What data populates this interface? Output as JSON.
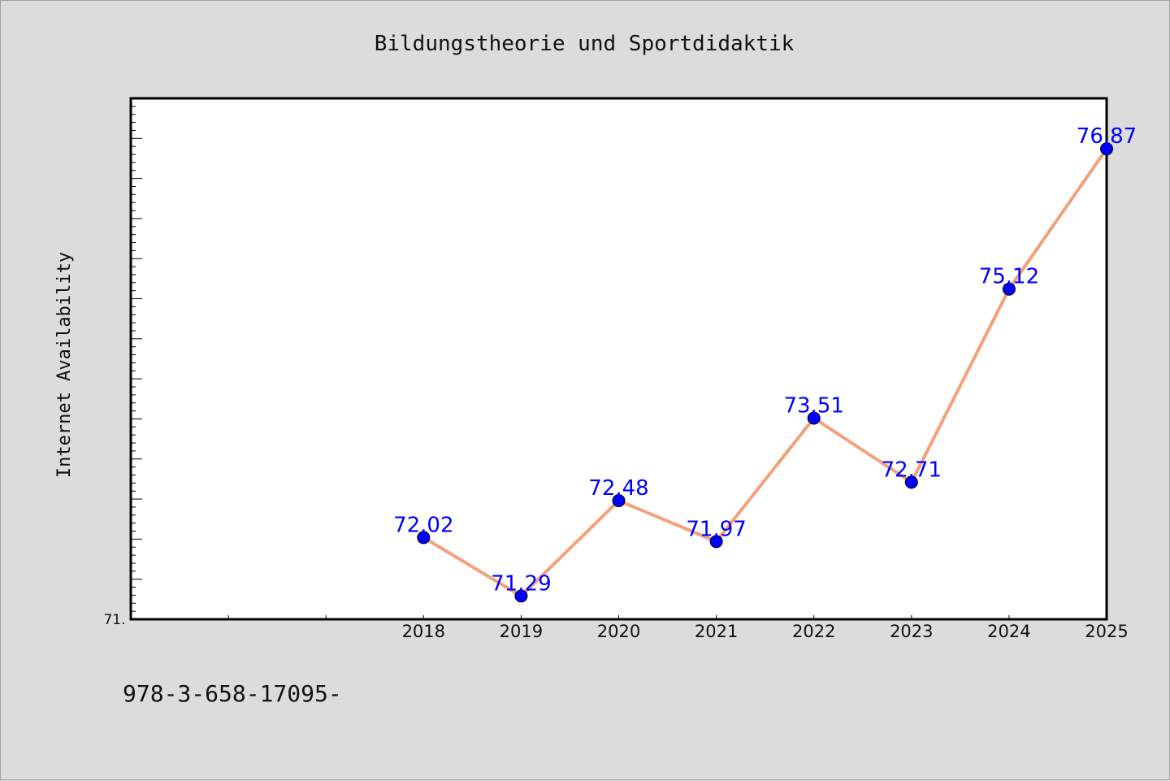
{
  "chart_data": {
    "type": "line",
    "title": "Bildungstheorie und Sportdidaktik",
    "ylabel": "Internet Availability",
    "xlabel": "",
    "x": [
      "2018",
      "2019",
      "2020",
      "2021",
      "2022",
      "2023",
      "2024",
      "2025"
    ],
    "series": [
      {
        "values": [
          72.02,
          71.29,
          72.48,
          71.97,
          73.51,
          72.71,
          75.12,
          76.87
        ],
        "line_color": "#f4a07a",
        "marker_color": "#0000ff"
      }
    ],
    "data_labels": [
      "72.02",
      "71.29",
      "72.48",
      "71.97",
      "73.51",
      "72.71",
      "75.12",
      "76.87"
    ],
    "ytick_label": "71.",
    "ylim": [
      71.0,
      77.5
    ],
    "x_slots": 10,
    "grid": false,
    "legend": "none"
  },
  "footer": {
    "text": "978-3-658-17095-"
  },
  "colors": {
    "background": "#dcdcdc",
    "plot_background": "#ffffff",
    "line": "#f4a07a",
    "marker": "#0000ff",
    "label": "#0000ff"
  }
}
